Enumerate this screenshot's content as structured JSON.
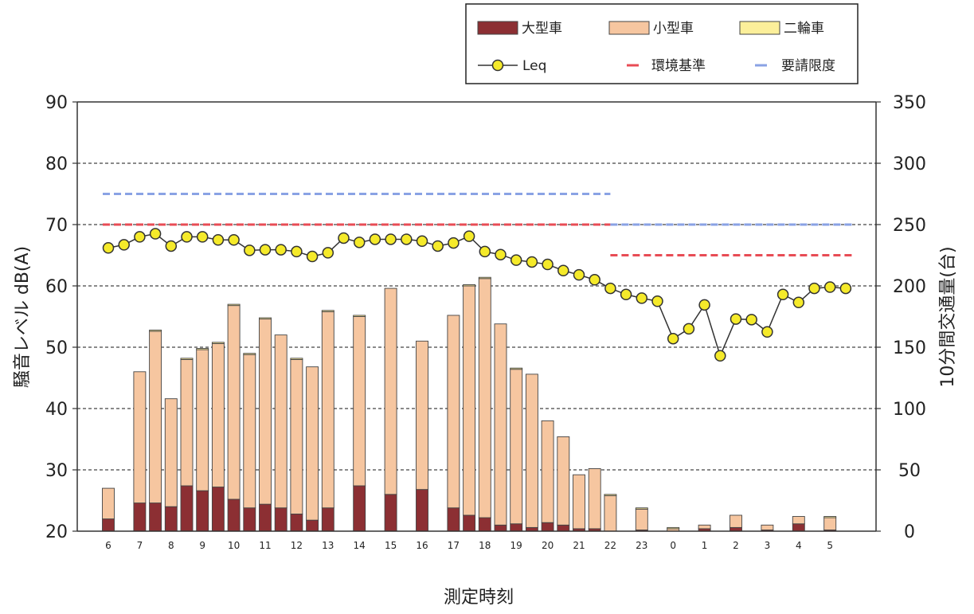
{
  "chart_data": {
    "type": "bar",
    "xlabel": "測定時刻",
    "ylabel_left": "騒音レベル dB(A)",
    "ylabel_right": "10分間交通量(台)",
    "ylim_left": [
      20,
      90
    ],
    "ylim_right": [
      0,
      350
    ],
    "left_ticks": [
      "20",
      "30",
      "40",
      "50",
      "60",
      "70",
      "80",
      "90"
    ],
    "right_ticks": [
      "0",
      "50",
      "100",
      "150",
      "200",
      "250",
      "300",
      "350"
    ],
    "grid": "dashed horizontal at 30–80 dB",
    "legend": {
      "position": "top-right",
      "items": [
        "大型車",
        "小型車",
        "二輪車",
        "Leq",
        "環境基準",
        "要請限度"
      ]
    },
    "bars": [
      {
        "x": 6,
        "label": "6",
        "large": 10,
        "small": 25,
        "moto": 0
      },
      {
        "x": 7,
        "label": "7",
        "large": 23,
        "small": 107,
        "moto": 0
      },
      {
        "x": 7.5,
        "label": "",
        "large": 23,
        "small": 140,
        "moto": 1
      },
      {
        "x": 8,
        "label": "8",
        "large": 20,
        "small": 88,
        "moto": 0
      },
      {
        "x": 8.5,
        "label": "",
        "large": 37,
        "small": 103,
        "moto": 1
      },
      {
        "x": 9,
        "label": "9",
        "large": 33,
        "small": 115,
        "moto": 1
      },
      {
        "x": 9.5,
        "label": "",
        "large": 36,
        "small": 117,
        "moto": 1
      },
      {
        "x": 10,
        "label": "10",
        "large": 26,
        "small": 158,
        "moto": 1
      },
      {
        "x": 10.5,
        "label": "",
        "large": 19,
        "small": 125,
        "moto": 1
      },
      {
        "x": 11,
        "label": "11",
        "large": 22,
        "small": 151,
        "moto": 1
      },
      {
        "x": 11.5,
        "label": "",
        "large": 19,
        "small": 141,
        "moto": 0
      },
      {
        "x": 12,
        "label": "12",
        "large": 14,
        "small": 126,
        "moto": 1
      },
      {
        "x": 12.5,
        "label": "",
        "large": 9,
        "small": 125,
        "moto": 0
      },
      {
        "x": 13,
        "label": "13",
        "large": 19,
        "small": 160,
        "moto": 1
      },
      {
        "x": 14,
        "label": "14",
        "large": 37,
        "small": 138,
        "moto": 1
      },
      {
        "x": 15,
        "label": "15",
        "large": 30,
        "small": 168,
        "moto": 0
      },
      {
        "x": 16,
        "label": "16",
        "large": 34,
        "small": 121,
        "moto": 0
      },
      {
        "x": 17,
        "label": "17",
        "large": 19,
        "small": 157,
        "moto": 0
      },
      {
        "x": 17.5,
        "label": "",
        "large": 13,
        "small": 187,
        "moto": 1
      },
      {
        "x": 18,
        "label": "18",
        "large": 11,
        "small": 195,
        "moto": 1
      },
      {
        "x": 18.5,
        "label": "",
        "large": 5,
        "small": 164,
        "moto": 0
      },
      {
        "x": 19,
        "label": "19",
        "large": 6,
        "small": 126,
        "moto": 1
      },
      {
        "x": 19.5,
        "label": "",
        "large": 3,
        "small": 125,
        "moto": 0
      },
      {
        "x": 20,
        "label": "20",
        "large": 7,
        "small": 83,
        "moto": 0
      },
      {
        "x": 20.5,
        "label": "",
        "large": 5,
        "small": 72,
        "moto": 0
      },
      {
        "x": 21,
        "label": "21",
        "large": 2,
        "small": 44,
        "moto": 0
      },
      {
        "x": 21.5,
        "label": "",
        "large": 2,
        "small": 49,
        "moto": 0
      },
      {
        "x": 22,
        "label": "22",
        "large": 0,
        "small": 29,
        "moto": 1
      },
      {
        "x": 23,
        "label": "23",
        "large": 1,
        "small": 17,
        "moto": 1
      },
      {
        "x": 0,
        "label": "0",
        "large": 0,
        "small": 2,
        "moto": 1
      },
      {
        "x": 1,
        "label": "1",
        "large": 2,
        "small": 3,
        "moto": 0
      },
      {
        "x": 2,
        "label": "2",
        "large": 3,
        "small": 10,
        "moto": 0
      },
      {
        "x": 3,
        "label": "3",
        "large": 1,
        "small": 4,
        "moto": 0
      },
      {
        "x": 4,
        "label": "4",
        "large": 6,
        "small": 6,
        "moto": 0
      },
      {
        "x": 5,
        "label": "5",
        "large": 1,
        "small": 10,
        "moto": 1
      }
    ],
    "leq": [
      {
        "x": 6,
        "y": 66.2
      },
      {
        "x": 6.5,
        "y": 66.7
      },
      {
        "x": 7,
        "y": 68.0
      },
      {
        "x": 7.5,
        "y": 68.5
      },
      {
        "x": 8,
        "y": 66.5
      },
      {
        "x": 8.5,
        "y": 68.0
      },
      {
        "x": 9,
        "y": 68.0
      },
      {
        "x": 9.5,
        "y": 67.5
      },
      {
        "x": 10,
        "y": 67.5
      },
      {
        "x": 10.5,
        "y": 65.8
      },
      {
        "x": 11,
        "y": 65.9
      },
      {
        "x": 11.5,
        "y": 65.9
      },
      {
        "x": 12,
        "y": 65.6
      },
      {
        "x": 12.5,
        "y": 64.8
      },
      {
        "x": 13,
        "y": 65.4
      },
      {
        "x": 13.5,
        "y": 67.8
      },
      {
        "x": 14,
        "y": 67.1
      },
      {
        "x": 14.5,
        "y": 67.6
      },
      {
        "x": 15,
        "y": 67.6
      },
      {
        "x": 15.5,
        "y": 67.6
      },
      {
        "x": 16,
        "y": 67.3
      },
      {
        "x": 16.5,
        "y": 66.5
      },
      {
        "x": 17,
        "y": 67.0
      },
      {
        "x": 17.5,
        "y": 68.1
      },
      {
        "x": 18,
        "y": 65.6
      },
      {
        "x": 18.5,
        "y": 65.1
      },
      {
        "x": 19,
        "y": 64.2
      },
      {
        "x": 19.5,
        "y": 63.9
      },
      {
        "x": 20,
        "y": 63.5
      },
      {
        "x": 20.5,
        "y": 62.5
      },
      {
        "x": 21,
        "y": 61.8
      },
      {
        "x": 21.5,
        "y": 61.0
      },
      {
        "x": 22,
        "y": 59.6
      },
      {
        "x": 22.5,
        "y": 58.6
      },
      {
        "x": 23,
        "y": 58.0
      },
      {
        "x": 23.5,
        "y": 57.5
      },
      {
        "x": 0,
        "y": 51.4
      },
      {
        "x": 0.5,
        "y": 53.0
      },
      {
        "x": 1,
        "y": 56.9
      },
      {
        "x": 1.5,
        "y": 48.6
      },
      {
        "x": 2,
        "y": 54.6
      },
      {
        "x": 2.5,
        "y": 54.5
      },
      {
        "x": 3,
        "y": 52.5
      },
      {
        "x": 3.5,
        "y": 58.6
      },
      {
        "x": 4,
        "y": 57.3
      },
      {
        "x": 4.5,
        "y": 59.6
      },
      {
        "x": 5,
        "y": 59.8
      },
      {
        "x": 5.5,
        "y": 59.6
      }
    ],
    "environmental_standard": [
      {
        "from": 6,
        "to": 22,
        "y": 70
      },
      {
        "from": 22,
        "to": 6,
        "y": 65
      }
    ],
    "request_limit": [
      {
        "from": 6,
        "to": 22,
        "y": 75
      },
      {
        "from": 22,
        "to": 6,
        "y": 70
      }
    ],
    "colors": {
      "large": "#8c2f33",
      "small": "#f6c6a0",
      "moto": "#fcef9a",
      "leq_fill": "#f5ea2a",
      "env_std": "#e84c55",
      "req_limit": "#8aa2e4",
      "grid": "#444444"
    }
  }
}
